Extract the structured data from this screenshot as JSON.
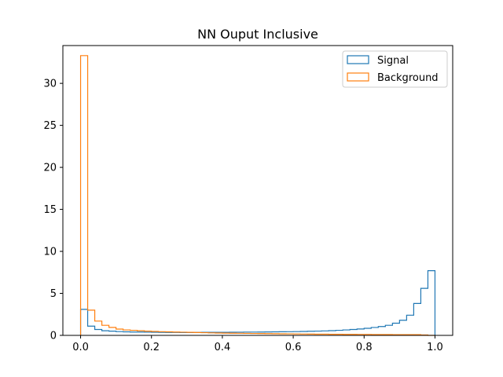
{
  "chart_data": {
    "type": "histogram-step",
    "title": "NN Ouput Inclusive",
    "xlabel": "",
    "ylabel": "",
    "xlim": [
      -0.05,
      1.05
    ],
    "ylim": [
      0,
      34.5
    ],
    "x_ticks": [
      "0.0",
      "0.2",
      "0.4",
      "0.6",
      "0.8",
      "1.0"
    ],
    "x_tick_values": [
      0.0,
      0.2,
      0.4,
      0.6,
      0.8,
      1.0
    ],
    "y_ticks": [
      "0",
      "5",
      "10",
      "15",
      "20",
      "25",
      "30"
    ],
    "y_tick_values": [
      0,
      5,
      10,
      15,
      20,
      25,
      30
    ],
    "grid": false,
    "legend_position": "upper right",
    "bin_edges_range": [
      0.0,
      1.0
    ],
    "n_bins": 50,
    "series": [
      {
        "name": "Signal",
        "color": "#1f77b4",
        "values": [
          3.1,
          1.1,
          0.7,
          0.55,
          0.5,
          0.45,
          0.42,
          0.4,
          0.4,
          0.38,
          0.37,
          0.36,
          0.35,
          0.35,
          0.34,
          0.34,
          0.35,
          0.36,
          0.36,
          0.37,
          0.37,
          0.38,
          0.38,
          0.39,
          0.39,
          0.4,
          0.41,
          0.42,
          0.43,
          0.44,
          0.45,
          0.47,
          0.49,
          0.51,
          0.53,
          0.56,
          0.6,
          0.65,
          0.7,
          0.76,
          0.84,
          0.94,
          1.05,
          1.2,
          1.45,
          1.8,
          2.4,
          3.8,
          5.6,
          7.7
        ]
      },
      {
        "name": "Background",
        "color": "#ff7f0e",
        "values": [
          33.3,
          3.0,
          1.7,
          1.2,
          0.95,
          0.75,
          0.65,
          0.6,
          0.55,
          0.5,
          0.47,
          0.44,
          0.42,
          0.4,
          0.38,
          0.36,
          0.34,
          0.32,
          0.3,
          0.28,
          0.27,
          0.26,
          0.25,
          0.24,
          0.23,
          0.22,
          0.21,
          0.2,
          0.19,
          0.18,
          0.17,
          0.16,
          0.15,
          0.14,
          0.14,
          0.13,
          0.13,
          0.12,
          0.12,
          0.11,
          0.11,
          0.1,
          0.1,
          0.1,
          0.09,
          0.09,
          0.08,
          0.08,
          0.05,
          0.0
        ]
      }
    ]
  }
}
